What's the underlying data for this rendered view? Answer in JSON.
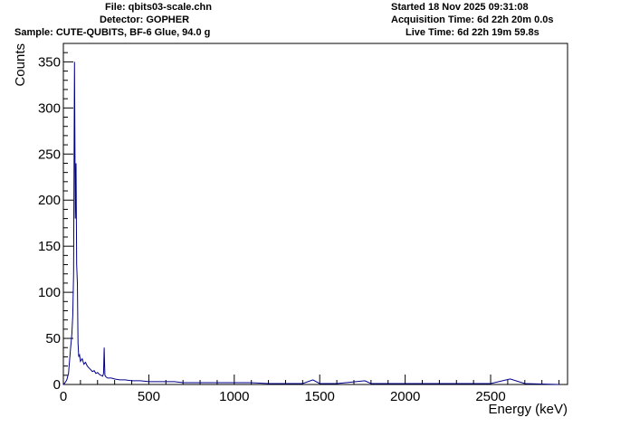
{
  "header": {
    "file": "File: qbits03-scale.chn",
    "detector": "Detector: GOPHER",
    "sample": "Sample: CUTE-QUBITS, BF-6 Glue, 94.0 g",
    "started": "Started 18 Nov 2025 09:31:08",
    "acquisition_time": "Acquisition Time: 6d 22h 20m 0.0s",
    "live_time": "Live Time: 6d 22h 19m 59.8s"
  },
  "chart_data": {
    "type": "line",
    "title": "",
    "xlabel": "Energy (keV)",
    "ylabel": "Counts",
    "xlim": [
      0,
      2950
    ],
    "ylim": [
      0,
      370
    ],
    "x_ticks": [
      0,
      500,
      1000,
      1500,
      2000,
      2500
    ],
    "y_ticks": [
      0,
      50,
      100,
      150,
      200,
      250,
      300,
      350
    ],
    "grid": false,
    "line_color": "#00008b",
    "series": [
      {
        "x": [
          0,
          10,
          20,
          30,
          40,
          50,
          55,
          60,
          65,
          70,
          74,
          78,
          82,
          86,
          90,
          95,
          100,
          110,
          120,
          130,
          140,
          150,
          160,
          170,
          180,
          190,
          200,
          210,
          220,
          230,
          235,
          239,
          243,
          250,
          260,
          280,
          300,
          330,
          360,
          400,
          450,
          500,
          550,
          600,
          650,
          700,
          800,
          900,
          1000,
          1100,
          1200,
          1300,
          1400,
          1460,
          1500,
          1600,
          1764,
          1800,
          2000,
          2200,
          2400,
          2500,
          2614,
          2700,
          2900
        ],
        "y": [
          0,
          2,
          5,
          12,
          35,
          55,
          75,
          120,
          350,
          180,
          240,
          130,
          110,
          45,
          30,
          32,
          25,
          28,
          22,
          24,
          20,
          18,
          16,
          14,
          15,
          12,
          13,
          11,
          10,
          9,
          12,
          40,
          10,
          8,
          7,
          7,
          6,
          5,
          5,
          4,
          4,
          3,
          3,
          3,
          3,
          2,
          2,
          2,
          2,
          2,
          1,
          1,
          1,
          5,
          1,
          1,
          4,
          1,
          1,
          1,
          1,
          1,
          6,
          1,
          0
        ]
      }
    ]
  }
}
